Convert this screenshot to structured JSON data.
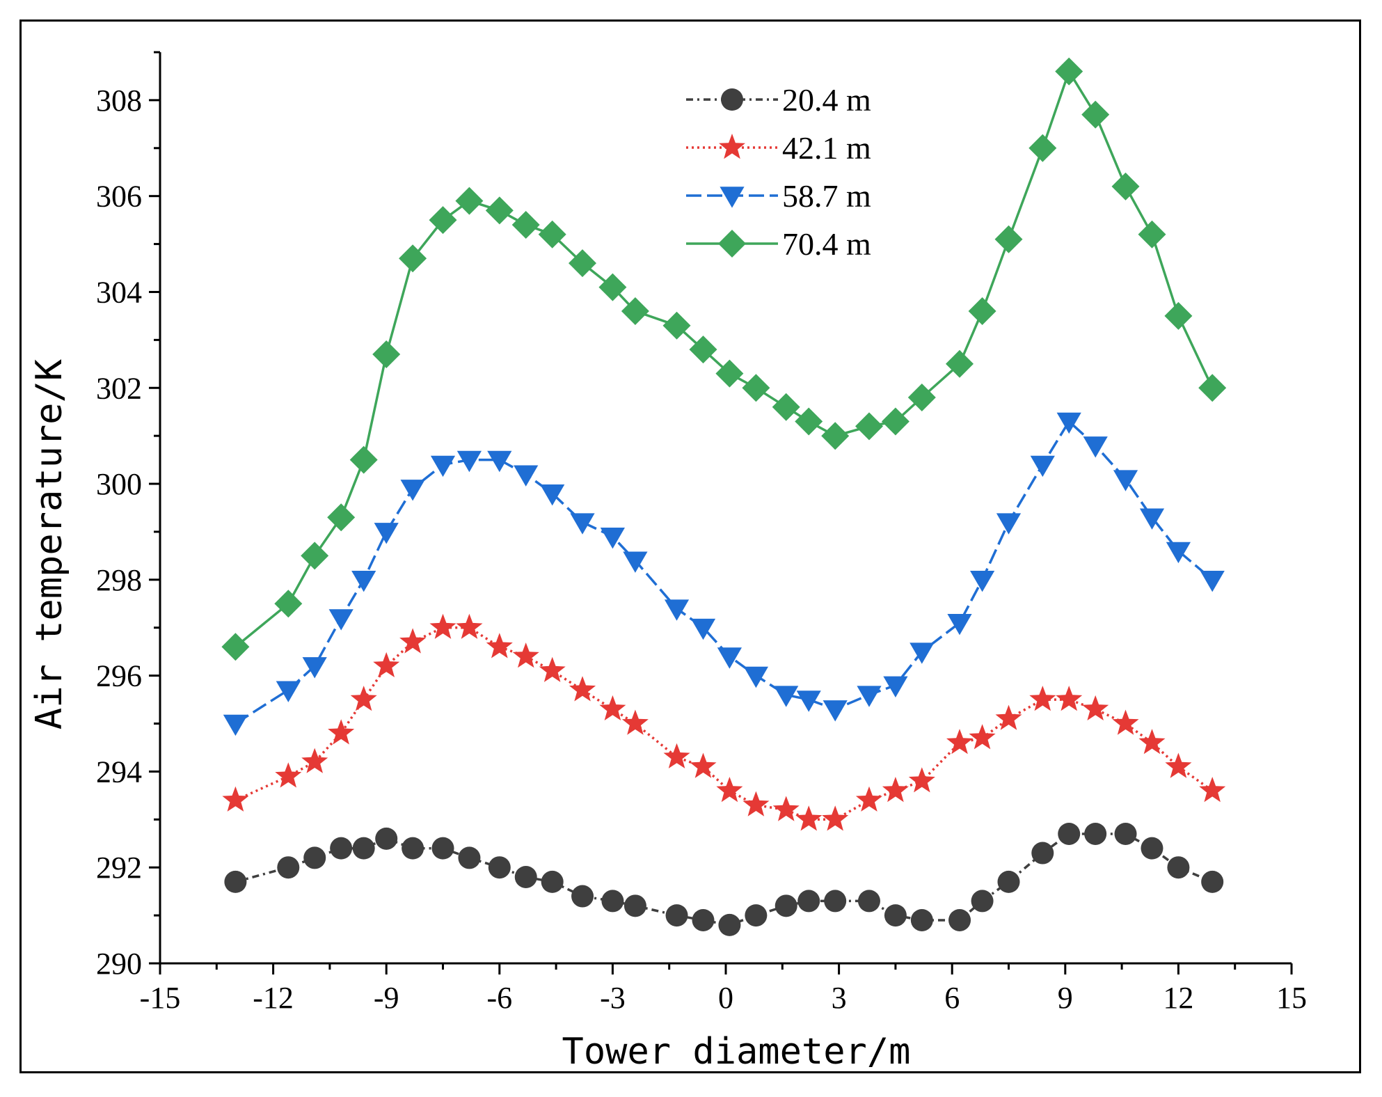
{
  "chart_data": {
    "type": "line",
    "title": "",
    "xlabel": "Tower diameter/m",
    "ylabel": "Air temperature/K",
    "xlim": [
      -15,
      15
    ],
    "ylim": [
      290,
      309
    ],
    "xticks": [
      "-15",
      "-12",
      "-9",
      "-6",
      "-3",
      "0",
      "3",
      "6",
      "9",
      "12",
      "15"
    ],
    "yticks": [
      "290",
      "292",
      "294",
      "296",
      "298",
      "300",
      "302",
      "304",
      "306",
      "308"
    ],
    "legend_position": "top-center",
    "x": [
      -13.0,
      -11.6,
      -10.9,
      -10.2,
      -9.6,
      -9.0,
      -8.3,
      -7.5,
      -6.8,
      -6.0,
      -5.3,
      -4.6,
      -3.8,
      -3.0,
      -2.4,
      -1.3,
      -0.6,
      0.1,
      0.8,
      1.6,
      2.2,
      2.9,
      3.8,
      4.5,
      5.2,
      6.2,
      6.8,
      7.5,
      8.4,
      9.1,
      9.8,
      10.6,
      11.3,
      12.0,
      12.9
    ],
    "series": [
      {
        "name": "20.4 m",
        "color": "#3f3f3f",
        "marker": "circle",
        "dash": "10,6,3,6",
        "values": [
          291.7,
          292.0,
          292.2,
          292.4,
          292.4,
          292.6,
          292.4,
          292.4,
          292.2,
          292.0,
          291.8,
          291.7,
          291.4,
          291.3,
          291.2,
          291.0,
          290.9,
          290.8,
          291.0,
          291.2,
          291.3,
          291.3,
          291.3,
          291.0,
          290.9,
          290.9,
          291.3,
          291.7,
          292.3,
          292.7,
          292.7,
          292.7,
          292.4,
          292.0,
          291.7
        ]
      },
      {
        "name": "42.1 m",
        "color": "#e53935",
        "marker": "star",
        "dash": "3,5",
        "values": [
          293.4,
          293.9,
          294.2,
          294.8,
          295.5,
          296.2,
          296.7,
          297.0,
          297.0,
          296.6,
          296.4,
          296.1,
          295.7,
          295.3,
          295.0,
          294.3,
          294.1,
          293.6,
          293.3,
          293.2,
          293.0,
          293.0,
          293.4,
          293.6,
          293.8,
          294.6,
          294.7,
          295.1,
          295.5,
          295.5,
          295.3,
          295.0,
          294.6,
          294.1,
          293.6
        ]
      },
      {
        "name": "58.7 m",
        "color": "#1f6ed4",
        "marker": "triangle-down",
        "dash": "22,8",
        "values": [
          295.0,
          295.7,
          296.2,
          297.2,
          298.0,
          299.0,
          299.9,
          300.4,
          300.5,
          300.5,
          300.2,
          299.8,
          299.2,
          298.9,
          298.4,
          297.4,
          297.0,
          296.4,
          296.0,
          295.6,
          295.5,
          295.3,
          295.6,
          295.8,
          296.5,
          297.1,
          298.0,
          299.2,
          300.4,
          301.3,
          300.8,
          300.1,
          299.3,
          298.6,
          298.0
        ]
      },
      {
        "name": "70.4 m",
        "color": "#3ea65a",
        "marker": "diamond",
        "dash": "",
        "values": [
          296.6,
          297.5,
          298.5,
          299.3,
          300.5,
          302.7,
          304.7,
          305.5,
          305.9,
          305.7,
          305.4,
          305.2,
          304.6,
          304.1,
          303.6,
          303.3,
          302.8,
          302.3,
          302.0,
          301.6,
          301.3,
          301.0,
          301.2,
          301.3,
          301.8,
          302.5,
          303.6,
          305.1,
          307.0,
          308.6,
          307.7,
          306.2,
          305.2,
          303.5,
          302.0
        ]
      }
    ]
  }
}
